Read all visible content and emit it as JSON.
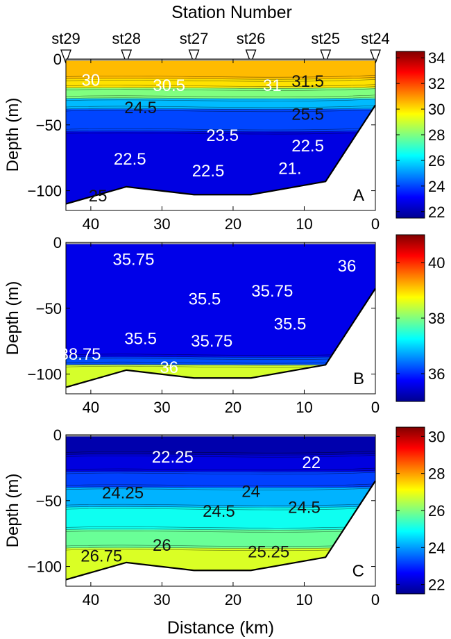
{
  "figure": {
    "top_title": "Station Number",
    "bottom_xlabel": "Distance (km)"
  },
  "stations": [
    {
      "name": "st29",
      "x": 43.5
    },
    {
      "name": "st28",
      "x": 35
    },
    {
      "name": "st27",
      "x": 25.5
    },
    {
      "name": "st26",
      "x": 17.5
    },
    {
      "name": "st25",
      "x": 7
    },
    {
      "name": "st24",
      "x": 0
    }
  ],
  "chart_data": [
    {
      "type": "heatmap",
      "panel_label": "A",
      "ylabel": "Depth (m)",
      "xlim": [
        43.5,
        0
      ],
      "ylim": [
        -115,
        0
      ],
      "x_ticks": [
        40,
        30,
        20,
        10,
        0
      ],
      "y_ticks": [
        0,
        -50,
        -100
      ],
      "x_tick_labels_shown": true,
      "x_tick_labels": [
        "40",
        "30",
        "20",
        "10",
        "0"
      ],
      "y_tick_labels": [
        "0",
        "−50",
        "−100"
      ],
      "colorbar": {
        "min": 21.5,
        "max": 34.5,
        "ticks": [
          22,
          24,
          26,
          28,
          30,
          32,
          34
        ],
        "tick_labels": [
          "22",
          "24",
          "26",
          "28",
          "30",
          "32",
          "34"
        ]
      },
      "bottom_profile": [
        [
          43.5,
          -110
        ],
        [
          35,
          -97
        ],
        [
          25.5,
          -103
        ],
        [
          17.5,
          -103
        ],
        [
          7,
          -93
        ],
        [
          0,
          -35
        ]
      ],
      "layers": [
        {
          "from_depth": 0,
          "to_depth": -15,
          "value": 30.5
        },
        {
          "from_depth": -15,
          "to_depth": -22,
          "value": 30
        },
        {
          "from_depth": -22,
          "to_depth": -30,
          "value": 28
        },
        {
          "from_depth": -30,
          "to_depth": -38,
          "value": 25.5
        },
        {
          "from_depth": -38,
          "to_depth": -55,
          "value": 24
        },
        {
          "from_depth": -55,
          "to_depth": -115,
          "value": 22.7
        }
      ],
      "contour_labels": [
        {
          "text": "30",
          "x": 40,
          "y": -16,
          "color": "light"
        },
        {
          "text": "30.5",
          "x": 29,
          "y": -20,
          "color": "light"
        },
        {
          "text": "31",
          "x": 14.5,
          "y": -20,
          "color": "light"
        },
        {
          "text": "31.5",
          "x": 9.5,
          "y": -17,
          "color": "dark"
        },
        {
          "text": "24.5",
          "x": 33,
          "y": -37,
          "color": "dark"
        },
        {
          "text": "25.5",
          "x": 9.5,
          "y": -42,
          "color": "dark"
        },
        {
          "text": "23.5",
          "x": 21.5,
          "y": -58,
          "color": "light"
        },
        {
          "text": "22.5",
          "x": 34.5,
          "y": -76,
          "color": "light"
        },
        {
          "text": "22.5",
          "x": 9.5,
          "y": -66,
          "color": "light"
        },
        {
          "text": "22.5",
          "x": 23.5,
          "y": -85,
          "color": "light"
        },
        {
          "text": "21.",
          "x": 12,
          "y": -83,
          "color": "light"
        },
        {
          "text": "25",
          "x": 39,
          "y": -104,
          "color": "dark"
        }
      ]
    },
    {
      "type": "heatmap",
      "panel_label": "B",
      "ylabel": "Depth (m)",
      "xlim": [
        43.5,
        0
      ],
      "ylim": [
        -115,
        0
      ],
      "x_ticks": [
        40,
        30,
        20,
        10,
        0
      ],
      "y_ticks": [
        0,
        -50,
        -100
      ],
      "x_tick_labels_shown": true,
      "x_tick_labels": [
        "40",
        "30",
        "20",
        "10",
        "0"
      ],
      "y_tick_labels": [
        "0",
        "−50",
        "−100"
      ],
      "colorbar": {
        "min": 35,
        "max": 41,
        "ticks": [
          36,
          38,
          40
        ],
        "tick_labels": [
          "36",
          "38",
          "40"
        ]
      },
      "bottom_profile": [
        [
          43.5,
          -110
        ],
        [
          35,
          -97
        ],
        [
          25.5,
          -103
        ],
        [
          17.5,
          -103
        ],
        [
          7,
          -93
        ],
        [
          0,
          -35
        ]
      ],
      "layers": [
        {
          "from_depth": 0,
          "to_depth": -87,
          "value": 35.6
        },
        {
          "from_depth": -87,
          "to_depth": -93,
          "value": 36.2
        },
        {
          "from_depth": -93,
          "to_depth": -115,
          "value": 38.5
        }
      ],
      "contour_labels": [
        {
          "text": "35.75",
          "x": 34,
          "y": -13,
          "color": "light"
        },
        {
          "text": "35.5",
          "x": 24,
          "y": -43,
          "color": "light"
        },
        {
          "text": "35.75",
          "x": 14.5,
          "y": -37,
          "color": "light"
        },
        {
          "text": "36",
          "x": 4,
          "y": -18,
          "color": "light"
        },
        {
          "text": "35.5",
          "x": 33,
          "y": -73,
          "color": "light"
        },
        {
          "text": "35.75",
          "x": 23,
          "y": -75,
          "color": "light"
        },
        {
          "text": "35.5",
          "x": 12,
          "y": -62,
          "color": "light"
        },
        {
          "text": "38.75",
          "x": 41.5,
          "y": -85,
          "color": "light"
        },
        {
          "text": "36",
          "x": 29,
          "y": -95,
          "color": "light"
        }
      ]
    },
    {
      "type": "heatmap",
      "panel_label": "C",
      "ylabel": "Depth (m)",
      "xlabel": "Distance (km)",
      "xlim": [
        43.5,
        0
      ],
      "ylim": [
        -115,
        0
      ],
      "x_ticks": [
        40,
        30,
        20,
        10,
        0
      ],
      "y_ticks": [
        0,
        -50,
        -100
      ],
      "x_tick_labels_shown": true,
      "x_tick_labels": [
        "40",
        "30",
        "20",
        "10",
        "0"
      ],
      "y_tick_labels": [
        "0",
        "−50",
        "−100"
      ],
      "colorbar": {
        "min": 21.5,
        "max": 30.5,
        "ticks": [
          22,
          24,
          26,
          28,
          30
        ],
        "tick_labels": [
          "22",
          "24",
          "26",
          "28",
          "30"
        ]
      },
      "bottom_profile": [
        [
          43.5,
          -110
        ],
        [
          35,
          -97
        ],
        [
          25.5,
          -103
        ],
        [
          17.5,
          -103
        ],
        [
          7,
          -93
        ],
        [
          0,
          -35
        ]
      ],
      "layers": [
        {
          "from_depth": 0,
          "to_depth": -15,
          "value": 21.8
        },
        {
          "from_depth": -15,
          "to_depth": -28,
          "value": 22.3
        },
        {
          "from_depth": -28,
          "to_depth": -40,
          "value": 23.2
        },
        {
          "from_depth": -40,
          "to_depth": -55,
          "value": 24.2
        },
        {
          "from_depth": -55,
          "to_depth": -72,
          "value": 25
        },
        {
          "from_depth": -72,
          "to_depth": -86,
          "value": 25.8
        },
        {
          "from_depth": -86,
          "to_depth": -115,
          "value": 26.8
        }
      ],
      "contour_labels": [
        {
          "text": "22.25",
          "x": 28.5,
          "y": -17,
          "color": "light"
        },
        {
          "text": "22",
          "x": 9,
          "y": -21,
          "color": "light"
        },
        {
          "text": "24.25",
          "x": 35.5,
          "y": -44,
          "color": "dark"
        },
        {
          "text": "24",
          "x": 17.5,
          "y": -43,
          "color": "dark"
        },
        {
          "text": "24.5",
          "x": 22,
          "y": -58,
          "color": "dark"
        },
        {
          "text": "24.5",
          "x": 10,
          "y": -55,
          "color": "dark"
        },
        {
          "text": "26",
          "x": 30,
          "y": -84,
          "color": "dark"
        },
        {
          "text": "26.75",
          "x": 38.5,
          "y": -92,
          "color": "dark"
        },
        {
          "text": "25.25",
          "x": 15,
          "y": -89,
          "color": "dark"
        }
      ]
    }
  ],
  "colors": {
    "jet_stops": [
      "#00008f",
      "#0000ff",
      "#0080ff",
      "#00ffff",
      "#80ff80",
      "#ffff00",
      "#ff8000",
      "#ff0000",
      "#800000"
    ]
  }
}
